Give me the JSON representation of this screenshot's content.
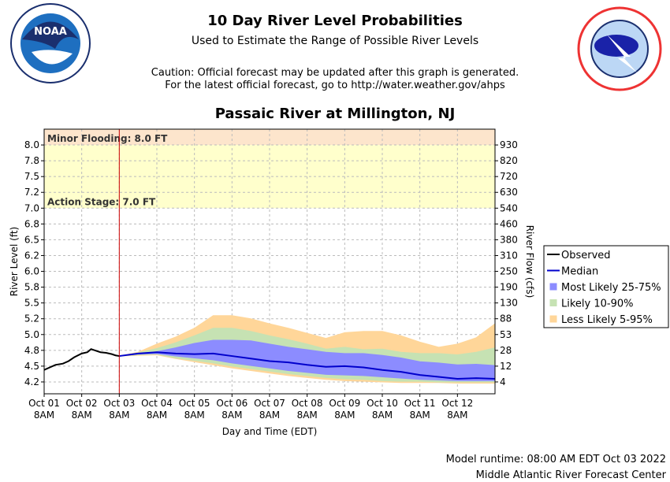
{
  "header": {
    "title": "10 Day River Level Probabilities",
    "subtitle": "Used to Estimate the Range of Possible River Levels",
    "caution": "Caution: Official forecast may be updated after this graph is generated.",
    "link": "For the latest official forecast, go to http://water.weather.gov/ahps"
  },
  "chart_data": {
    "type": "probability",
    "title": "Passaic River at Millington, NJ",
    "xlabel": "Day and Time (EDT)",
    "ylabel": "River Level (ft)",
    "y2label": "River Flow (cfs)",
    "xlim": [
      0,
      12
    ],
    "ylim": [
      4.0625,
      8.25
    ],
    "grid": true,
    "legend": "right",
    "xticks": [
      {
        "value": 0,
        "label": "Oct 01",
        "sublabel": "8AM"
      },
      {
        "value": 1,
        "label": "Oct 02",
        "sublabel": "8AM"
      },
      {
        "value": 2,
        "label": "Oct 03",
        "sublabel": "8AM"
      },
      {
        "value": 3,
        "label": "Oct 04",
        "sublabel": "8AM"
      },
      {
        "value": 4,
        "label": "Oct 05",
        "sublabel": "8AM"
      },
      {
        "value": 5,
        "label": "Oct 06",
        "sublabel": "8AM"
      },
      {
        "value": 6,
        "label": "Oct 07",
        "sublabel": "8AM"
      },
      {
        "value": 7,
        "label": "Oct 08",
        "sublabel": "8AM"
      },
      {
        "value": 8,
        "label": "Oct 09",
        "sublabel": "8AM"
      },
      {
        "value": 9,
        "label": "Oct 10",
        "sublabel": "8AM"
      },
      {
        "value": 10,
        "label": "Oct 11",
        "sublabel": "8AM"
      },
      {
        "value": 11,
        "label": "Oct 12",
        "sublabel": "8AM"
      }
    ],
    "yticks": [
      {
        "value": 4.25,
        "label": "4.2"
      },
      {
        "value": 4.5,
        "label": "4.5"
      },
      {
        "value": 4.75,
        "label": "4.8"
      },
      {
        "value": 5,
        "label": "5.0"
      },
      {
        "value": 5.25,
        "label": "5.2"
      },
      {
        "value": 5.5,
        "label": "5.5"
      },
      {
        "value": 5.75,
        "label": "5.8"
      },
      {
        "value": 6,
        "label": "6.0"
      },
      {
        "value": 6.25,
        "label": "6.2"
      },
      {
        "value": 6.5,
        "label": "6.5"
      },
      {
        "value": 6.75,
        "label": "6.8"
      },
      {
        "value": 7,
        "label": "7.0"
      },
      {
        "value": 7.25,
        "label": "7.2"
      },
      {
        "value": 7.5,
        "label": "7.5"
      },
      {
        "value": 7.75,
        "label": "7.8"
      },
      {
        "value": 8,
        "label": "8.0"
      }
    ],
    "y2ticks": [
      {
        "stage": 4.25,
        "flow": 4
      },
      {
        "stage": 4.5,
        "flow": 12
      },
      {
        "stage": 4.75,
        "flow": 28
      },
      {
        "stage": 5,
        "flow": 53
      },
      {
        "stage": 5.25,
        "flow": 88
      },
      {
        "stage": 5.5,
        "flow": 130
      },
      {
        "stage": 5.75,
        "flow": 190
      },
      {
        "stage": 6,
        "flow": 250
      },
      {
        "stage": 6.25,
        "flow": 310
      },
      {
        "stage": 6.5,
        "flow": 380
      },
      {
        "stage": 6.75,
        "flow": 460
      },
      {
        "stage": 7,
        "flow": 540
      },
      {
        "stage": 7.25,
        "flow": 630
      },
      {
        "stage": 7.5,
        "flow": 720
      },
      {
        "stage": 7.75,
        "flow": 820
      },
      {
        "stage": 8,
        "flow": 930
      }
    ],
    "stages": [
      {
        "label": "Minor Flooding: 8.0 FT",
        "value": 8.0,
        "color": "#fde5cc"
      },
      {
        "label": "Action Stage: 7.0 FT",
        "value": 7.0,
        "color": "#ffffcc"
      }
    ],
    "forecast_start": 2,
    "observed": {
      "name": "Observed",
      "color": "#000000",
      "x": [
        0,
        0.15,
        0.3,
        0.5,
        0.65,
        0.8,
        1.0,
        1.15,
        1.25,
        1.4,
        1.5,
        1.65,
        1.8,
        1.9,
        2.0
      ],
      "values": [
        4.44,
        4.48,
        4.52,
        4.54,
        4.58,
        4.64,
        4.7,
        4.72,
        4.77,
        4.74,
        4.72,
        4.71,
        4.69,
        4.67,
        4.66
      ]
    },
    "x": [
      2,
      2.5,
      3,
      3.5,
      4,
      4.5,
      5,
      5.5,
      6,
      6.5,
      7,
      7.5,
      8,
      8.5,
      9,
      9.5,
      10,
      10.5,
      11,
      11.5,
      12
    ],
    "series": [
      {
        "name": "Median",
        "color": "#0000cc",
        "values": [
          4.66,
          4.7,
          4.72,
          4.7,
          4.69,
          4.7,
          4.66,
          4.62,
          4.58,
          4.56,
          4.52,
          4.49,
          4.5,
          4.48,
          4.44,
          4.41,
          4.36,
          4.33,
          4.3,
          4.31,
          4.3
        ]
      },
      {
        "name": "Most Likely 25-75%",
        "color": "#8c8cff",
        "upper": [
          4.66,
          4.7,
          4.73,
          4.79,
          4.86,
          4.91,
          4.91,
          4.9,
          4.85,
          4.8,
          4.76,
          4.72,
          4.7,
          4.7,
          4.67,
          4.63,
          4.57,
          4.55,
          4.52,
          4.53,
          4.51
        ],
        "lower": [
          4.66,
          4.69,
          4.7,
          4.66,
          4.63,
          4.6,
          4.55,
          4.51,
          4.47,
          4.43,
          4.4,
          4.37,
          4.36,
          4.35,
          4.33,
          4.31,
          4.29,
          4.28,
          4.27,
          4.27,
          4.27
        ]
      },
      {
        "name": "Likely 10-90%",
        "color": "#c6e2b3",
        "upper": [
          4.66,
          4.71,
          4.78,
          4.87,
          4.98,
          5.1,
          5.1,
          5.05,
          4.98,
          4.92,
          4.85,
          4.77,
          4.8,
          4.76,
          4.77,
          4.72,
          4.7,
          4.7,
          4.68,
          4.72,
          4.79
        ],
        "lower": [
          4.66,
          4.68,
          4.69,
          4.63,
          4.59,
          4.55,
          4.5,
          4.46,
          4.42,
          4.38,
          4.35,
          4.32,
          4.3,
          4.29,
          4.27,
          4.26,
          4.26,
          4.25,
          4.25,
          4.25,
          4.25
        ]
      },
      {
        "name": "Less Likely 5-95%",
        "color": "#ffd699",
        "upper": [
          4.66,
          4.72,
          4.85,
          4.96,
          5.1,
          5.3,
          5.3,
          5.25,
          5.17,
          5.1,
          5.02,
          4.94,
          5.03,
          5.05,
          5.05,
          4.98,
          4.88,
          4.8,
          4.85,
          4.95,
          5.17
        ],
        "lower": [
          4.66,
          4.67,
          4.68,
          4.62,
          4.57,
          4.52,
          4.47,
          4.43,
          4.39,
          4.35,
          4.32,
          4.29,
          4.27,
          4.26,
          4.25,
          4.24,
          4.24,
          4.24,
          4.23,
          4.23,
          4.23
        ]
      }
    ]
  },
  "footer": {
    "runtime": "Model runtime: 08:00 AM EDT Oct 03 2022",
    "center": "Middle Atlantic River Forecast Center"
  }
}
